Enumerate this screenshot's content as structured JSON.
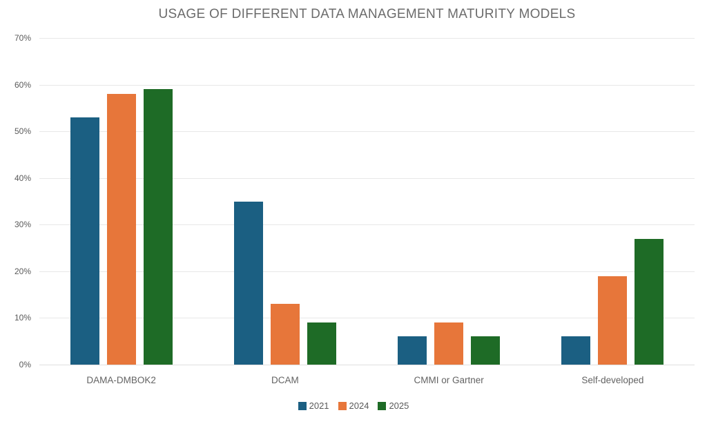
{
  "title": "USAGE OF DIFFERENT DATA MANAGEMENT MATURITY MODELS",
  "colors": {
    "series_2021": "#1b5f82",
    "series_2024": "#e7763a",
    "series_2025": "#1e6b26",
    "gridline": "#e7e7e7",
    "axis_line": "#dedede",
    "title_text": "#6b6b6b",
    "tick_text": "#595959"
  },
  "chart_data": {
    "type": "bar",
    "title": "USAGE OF DIFFERENT DATA MANAGEMENT MATURITY MODELS",
    "categories": [
      "DAMA-DMBOK2",
      "DCAM",
      "CMMI or Gartner",
      "Self-developed"
    ],
    "series": [
      {
        "name": "2021",
        "color": "#1b5f82",
        "values": [
          53,
          35,
          6,
          6
        ]
      },
      {
        "name": "2024",
        "color": "#e7763a",
        "values": [
          58,
          13,
          9,
          19
        ]
      },
      {
        "name": "2025",
        "color": "#1e6b26",
        "values": [
          59,
          9,
          6,
          27
        ]
      }
    ],
    "xlabel": "",
    "ylabel": "",
    "ylim": [
      0,
      70
    ],
    "ytick_values": [
      0,
      10,
      20,
      30,
      40,
      50,
      60,
      70
    ],
    "ytick_labels": [
      "0%",
      "10%",
      "20%",
      "30%",
      "40%",
      "50%",
      "60%",
      "70%"
    ],
    "grid": true,
    "legend_position": "bottom",
    "legend_labels": [
      "2021",
      "2024",
      "2025"
    ]
  }
}
